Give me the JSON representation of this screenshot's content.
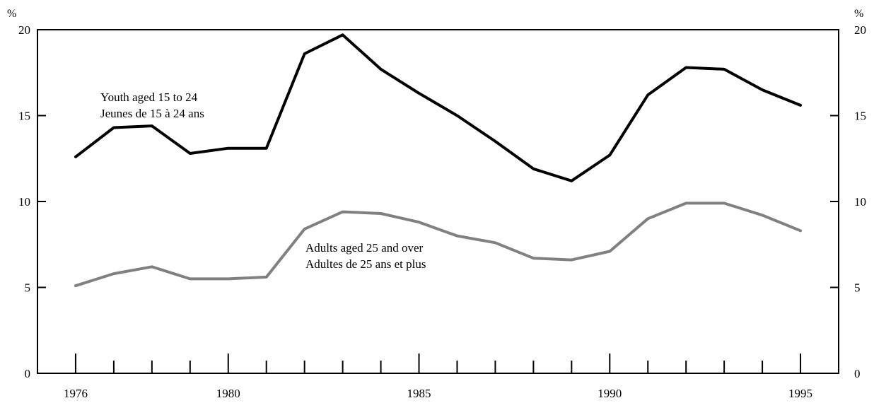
{
  "chart_data": {
    "type": "line",
    "title": "",
    "xlabel": "",
    "ylabel": "%",
    "y2label": "%",
    "xlim": [
      1975,
      1996
    ],
    "ylim": [
      0,
      20
    ],
    "x": [
      1976,
      1977,
      1978,
      1979,
      1980,
      1981,
      1982,
      1983,
      1984,
      1985,
      1986,
      1987,
      1988,
      1989,
      1990,
      1991,
      1992,
      1993,
      1994,
      1995
    ],
    "x_tick_labels": [
      "1976",
      "1980",
      "1985",
      "1990",
      "1995"
    ],
    "y_tick_labels": [
      "0",
      "5",
      "10",
      "15",
      "20"
    ],
    "grid": false,
    "legend": "none",
    "series": [
      {
        "name": "Youth aged 15 to 24 / Jeunes de 15 à 24 ans",
        "color": "#000000",
        "values": [
          12.6,
          14.3,
          14.4,
          12.8,
          13.1,
          13.1,
          18.6,
          19.7,
          17.7,
          16.3,
          15.0,
          13.5,
          11.9,
          11.2,
          12.7,
          16.2,
          17.8,
          17.7,
          16.5,
          15.6
        ]
      },
      {
        "name": "Adults aged 25 and over / Adultes de 25 ans et plus",
        "color": "#808080",
        "values": [
          5.1,
          5.8,
          6.2,
          5.5,
          5.5,
          5.6,
          8.4,
          9.4,
          9.3,
          8.8,
          8.0,
          7.6,
          6.7,
          6.6,
          7.1,
          9.0,
          9.9,
          9.9,
          9.2,
          8.3
        ]
      }
    ],
    "annotations": {
      "youth_line1": "Youth aged 15 to 24",
      "youth_line2": "Jeunes de 15 à 24 ans",
      "adult_line1": "Adults aged 25 and over",
      "adult_line2": "Adultes de 25 ans et plus"
    }
  }
}
